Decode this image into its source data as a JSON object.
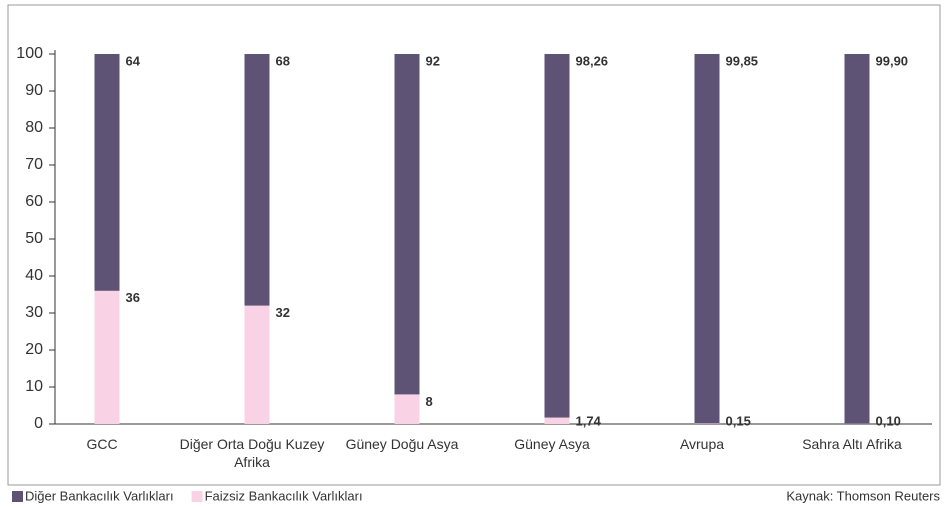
{
  "chart_data": {
    "type": "bar",
    "stacked": true,
    "categories": [
      "GCC",
      "Diğer Orta Doğu Kuzey Afrika",
      "Güney Doğu Asya",
      "Güney Asya",
      "Avrupa",
      "Sahra Altı Afrika"
    ],
    "series": [
      {
        "name": "Diğer Bankacılık Varlıkları",
        "color": "#5e5374",
        "values": [
          64,
          68,
          92,
          98.26,
          99.85,
          99.9
        ],
        "value_labels": [
          "64",
          "68",
          "92",
          "98,26",
          "99,85",
          "99,90"
        ]
      },
      {
        "name": "Faizsiz Bankacılık Varlıkları",
        "color": "#f9d2e6",
        "values": [
          36,
          32,
          8,
          1.74,
          0.15,
          0.1
        ],
        "value_labels": [
          "36",
          "32",
          "8",
          "1,74",
          "0,15",
          "0,10"
        ]
      }
    ],
    "ylim": [
      0,
      100
    ],
    "yticks": [
      0,
      10,
      20,
      30,
      40,
      50,
      60,
      70,
      80,
      90,
      100
    ],
    "source": "Kaynak: Thomson Reuters"
  }
}
